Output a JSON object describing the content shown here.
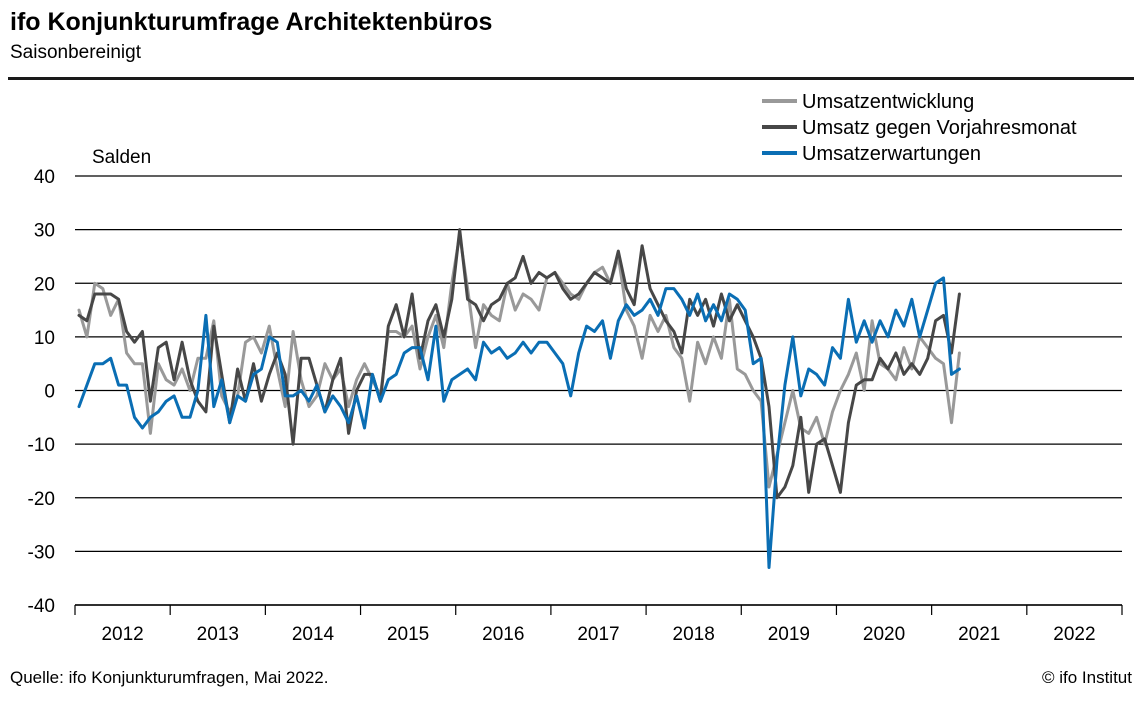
{
  "title": "ifo Konjunkturumfrage Architektenbüros",
  "subtitle": "Saisonbereinigt",
  "source": "Quelle: ifo Konjunkturumfragen, Mai 2022.",
  "copyright": "© ifo Institut",
  "chart_data": {
    "type": "line",
    "ylabel": "Salden",
    "ylim": [
      -40,
      40
    ],
    "yticks": [
      40,
      30,
      20,
      10,
      0,
      -10,
      -20,
      -30,
      -40
    ],
    "x_start": "2012-01",
    "x_end": "2022-05",
    "year_labels": [
      "2012",
      "2013",
      "2014",
      "2015",
      "2016",
      "2017",
      "2018",
      "2019",
      "2020",
      "2021",
      "2022"
    ],
    "grid": "horizontal",
    "legend_position": "top-right",
    "series": [
      {
        "name": "Umsatzentwicklung",
        "color": "#999999",
        "values": [
          15,
          10,
          20,
          19,
          14,
          17,
          7,
          5,
          5,
          -8,
          5,
          2,
          1,
          4,
          0,
          6,
          6,
          13,
          -1,
          -4,
          -1,
          9,
          10,
          7,
          12,
          4,
          -3,
          11,
          2,
          -3,
          -1,
          5,
          2,
          4,
          -3,
          2,
          5,
          2,
          -1,
          11,
          11,
          10,
          12,
          4,
          10,
          14,
          8,
          20,
          29,
          19,
          8,
          16,
          14,
          13,
          20,
          15,
          18,
          17,
          15,
          21,
          22,
          20,
          18,
          17,
          20,
          22,
          23,
          20,
          25,
          15,
          12,
          6,
          14,
          11,
          14,
          8,
          6,
          -2,
          9,
          5,
          10,
          6,
          17,
          4,
          3,
          0,
          -2,
          -18,
          -12,
          -6,
          0,
          -7,
          -8,
          -5,
          -10,
          -4,
          0,
          3,
          7,
          0,
          13,
          5,
          4,
          2,
          8,
          4,
          10,
          8,
          6,
          5,
          -6,
          7
        ]
      },
      {
        "name": "Umsatz gegen Vorjahresmonat",
        "color": "#474747",
        "values": [
          14,
          13,
          18,
          18,
          18,
          17,
          11,
          9,
          11,
          -2,
          8,
          9,
          2,
          9,
          2,
          -2,
          -4,
          12,
          3,
          -6,
          4,
          -2,
          5,
          -2,
          3,
          7,
          3,
          -10,
          6,
          6,
          1,
          -4,
          2,
          6,
          -8,
          0,
          3,
          3,
          -2,
          12,
          16,
          10,
          18,
          6,
          13,
          16,
          10,
          17,
          30,
          17,
          16,
          13,
          16,
          17,
          20,
          21,
          25,
          20,
          22,
          21,
          22,
          19,
          17,
          18,
          20,
          22,
          21,
          20,
          26,
          19,
          16,
          27,
          19,
          16,
          13,
          11,
          7,
          17,
          14,
          17,
          12,
          18,
          13,
          16,
          13,
          10,
          6,
          -3,
          -20,
          -18,
          -14,
          -5,
          -19,
          -10,
          -9,
          -14,
          -19,
          -6,
          1,
          2,
          2,
          6,
          4,
          7,
          3,
          5,
          3,
          6,
          13,
          14,
          7,
          18
        ]
      },
      {
        "name": "Umsatzerwartungen",
        "color": "#0a6eb4",
        "values": [
          -3,
          1,
          5,
          5,
          6,
          1,
          1,
          -5,
          -7,
          -5,
          -4,
          -2,
          -1,
          -5,
          -5,
          0,
          14,
          -3,
          2,
          -6,
          -1,
          -2,
          3,
          4,
          10,
          9,
          -1,
          -1,
          0,
          -2,
          1,
          -4,
          -1,
          -3,
          -6,
          -1,
          -7,
          3,
          -2,
          2,
          3,
          7,
          8,
          8,
          2,
          12,
          -2,
          2,
          3,
          4,
          2,
          9,
          7,
          8,
          6,
          7,
          9,
          7,
          9,
          9,
          7,
          5,
          -1,
          7,
          12,
          11,
          13,
          6,
          13,
          16,
          14,
          15,
          17,
          14,
          19,
          19,
          17,
          14,
          18,
          13,
          16,
          13,
          18,
          17,
          15,
          5,
          6,
          -33,
          -13,
          1,
          10,
          -1,
          4,
          3,
          1,
          8,
          6,
          17,
          9,
          13,
          9,
          13,
          10,
          15,
          12,
          17,
          10,
          15,
          20,
          21,
          3,
          4
        ]
      }
    ]
  }
}
